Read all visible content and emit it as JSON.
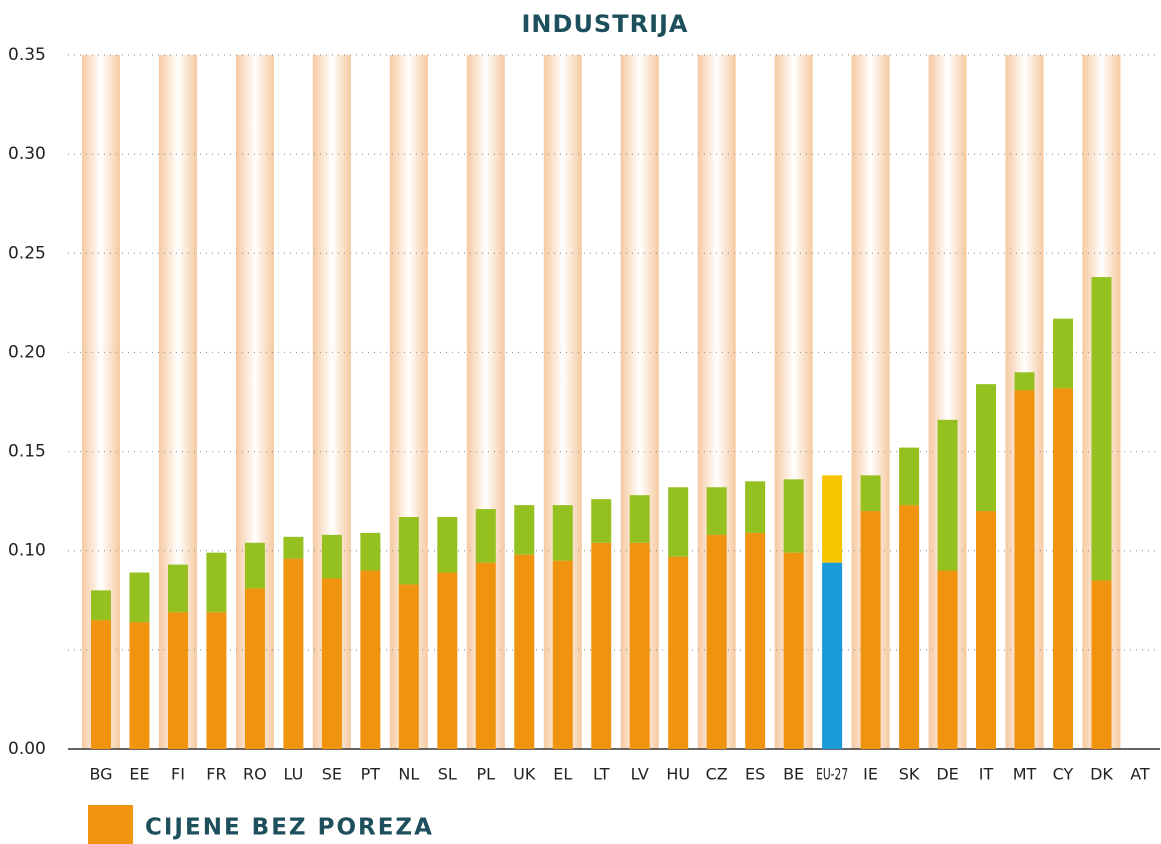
{
  "chart_data": {
    "type": "stacked_bar",
    "title": "INDUSTRIJA",
    "categories": [
      "BG",
      "EE",
      "FI",
      "FR",
      "RO",
      "LU",
      "SE",
      "PT",
      "NL",
      "SL",
      "PL",
      "UK",
      "EL",
      "LT",
      "LV",
      "HU",
      "CZ",
      "ES",
      "BE",
      "EU-27",
      "IE",
      "SK",
      "DE",
      "IT",
      "MT",
      "CY",
      "DK",
      "AT"
    ],
    "series": [
      {
        "name": "CIJENE BEZ POREZA",
        "color": "#f0940f",
        "colors": [
          "#f0940f",
          "#f0940f",
          "#f0940f",
          "#f0940f",
          "#f0940f",
          "#f0940f",
          "#f0940f",
          "#f0940f",
          "#f0940f",
          "#f0940f",
          "#f0940f",
          "#f0940f",
          "#f0940f",
          "#f0940f",
          "#f0940f",
          "#f0940f",
          "#f0940f",
          "#f0940f",
          "#f0940f",
          "#1a9ad8",
          "#f0940f",
          "#f0940f",
          "#f0940f",
          "#f0940f",
          "#f0940f",
          "#f0940f",
          "#f0940f",
          "#f0940f"
        ],
        "values": [
          0.065,
          0.064,
          0.069,
          0.069,
          0.081,
          0.096,
          0.086,
          0.09,
          0.083,
          0.089,
          0.094,
          0.098,
          0.095,
          0.104,
          0.104,
          0.097,
          0.108,
          0.109,
          0.099,
          0.094,
          0.12,
          0.123,
          0.09,
          0.12,
          0.181,
          0.182,
          0.085,
          null
        ]
      },
      {
        "color": "#94c11f",
        "colors": [
          "#94c11f",
          "#94c11f",
          "#94c11f",
          "#94c11f",
          "#94c11f",
          "#94c11f",
          "#94c11f",
          "#94c11f",
          "#94c11f",
          "#94c11f",
          "#94c11f",
          "#94c11f",
          "#94c11f",
          "#94c11f",
          "#94c11f",
          "#94c11f",
          "#94c11f",
          "#94c11f",
          "#94c11f",
          "#f7c400",
          "#94c11f",
          "#94c11f",
          "#94c11f",
          "#94c11f",
          "#94c11f",
          "#94c11f",
          "#94c11f",
          "#94c11f"
        ],
        "values": [
          0.015,
          0.025,
          0.024,
          0.03,
          0.023,
          0.011,
          0.022,
          0.019,
          0.034,
          0.028,
          0.027,
          0.025,
          0.028,
          0.022,
          0.024,
          0.035,
          0.024,
          0.026,
          0.037,
          0.044,
          0.018,
          0.029,
          0.076,
          0.064,
          0.009,
          0.035,
          0.153,
          null
        ]
      }
    ],
    "ylim": [
      0,
      0.35
    ],
    "yticks": [
      {
        "value": 0,
        "label": "0.00"
      },
      {
        "value": 0.1,
        "label": "0.10"
      },
      {
        "value": 0.15,
        "label": "0.15"
      },
      {
        "value": 0.2,
        "label": "0.20"
      },
      {
        "value": 0.25,
        "label": "0.25"
      },
      {
        "value": 0.3,
        "label": "0.30"
      },
      {
        "value": 0.35,
        "label": "0.35"
      }
    ],
    "minor_yticks": [
      0.05
    ],
    "grid": true,
    "stripes": true,
    "legend": "bottom-left"
  }
}
